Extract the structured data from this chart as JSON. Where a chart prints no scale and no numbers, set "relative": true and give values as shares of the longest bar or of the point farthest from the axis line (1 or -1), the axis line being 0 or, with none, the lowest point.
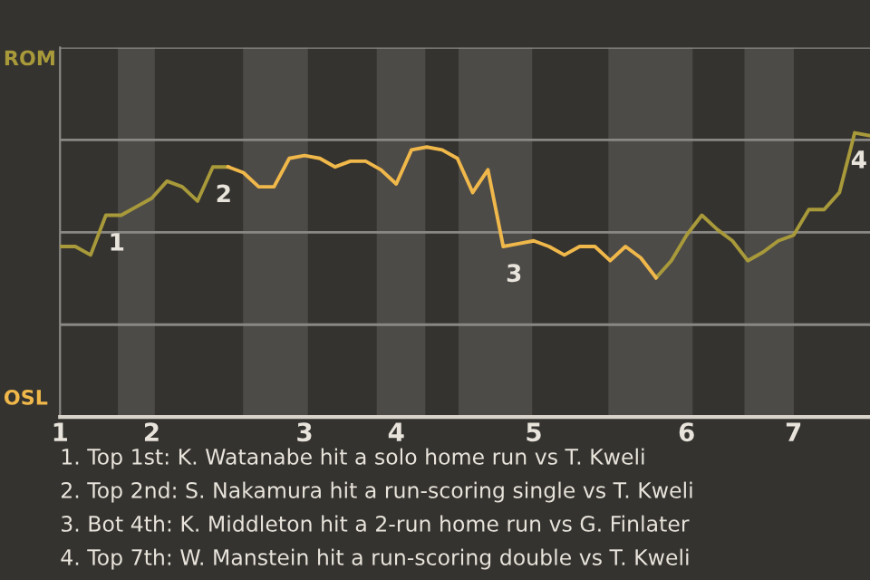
{
  "chart_data": {
    "type": "line",
    "relative": true,
    "categories": [
      "1",
      null,
      null,
      null,
      null,
      null,
      "2",
      null,
      null,
      null,
      null,
      null,
      null,
      null,
      null,
      null,
      "3",
      null,
      null,
      null,
      null,
      null,
      "4",
      null,
      null,
      null,
      null,
      null,
      null,
      null,
      null,
      "5",
      null,
      null,
      null,
      null,
      null,
      null,
      null,
      null,
      null,
      "6",
      null,
      null,
      null,
      null,
      null,
      null,
      "7",
      null,
      null,
      null,
      null,
      null
    ],
    "series": [
      {
        "color": "#a89a3a",
        "values": [
          0.6,
          0.6,
          0.57,
          0.71,
          0.71,
          0.74,
          0.77,
          0.83,
          0.81,
          0.76,
          0.88,
          0.88,
          null,
          null,
          null,
          null,
          null,
          null,
          null,
          null,
          null,
          null,
          null,
          null,
          null,
          null,
          null,
          null,
          null,
          null,
          null,
          null,
          null,
          null,
          null,
          null,
          null,
          null,
          null,
          0.49,
          0.55,
          0.64,
          0.71,
          0.66,
          0.62,
          0.55,
          0.58,
          0.62,
          0.64,
          0.73,
          0.73,
          0.79,
          1,
          0.99
        ]
      },
      {
        "color": "#f0b84a",
        "values": [
          null,
          null,
          null,
          null,
          null,
          null,
          null,
          null,
          null,
          null,
          null,
          0.88,
          0.86,
          0.81,
          0.81,
          0.91,
          0.92,
          0.91,
          0.88,
          0.9,
          0.9,
          0.87,
          0.82,
          0.94,
          0.95,
          0.94,
          0.91,
          0.79,
          0.87,
          0.6,
          0.61,
          0.62,
          0.6,
          0.57,
          0.6,
          0.6,
          0.55,
          0.6,
          0.56,
          0.49,
          null,
          null,
          null,
          null,
          null,
          null,
          null,
          null,
          null,
          null,
          null,
          null,
          null,
          null
        ]
      }
    ],
    "grid": "y",
    "marker": "none",
    "line_style": "solid",
    "annotations": [
      {
        "text": "1",
        "y": 0.71
      },
      {
        "text": "2",
        "y": 0.88
      },
      {
        "text": "3",
        "y": 0.6
      },
      {
        "text": "4",
        "y": 1
      },
      "ROM",
      "OSL",
      "1. Top 1st: K. Watanabe hit a solo home run vs T. Kweli",
      "2. Top 2nd: S. Nakamura hit a run-scoring single vs T. Kweli",
      "3. Bot 4th: K. Middleton hit a 2-run home run vs G. Finlater",
      "4. Top 7th: W. Manstein hit a run-scoring double vs T. Kweli"
    ]
  }
}
